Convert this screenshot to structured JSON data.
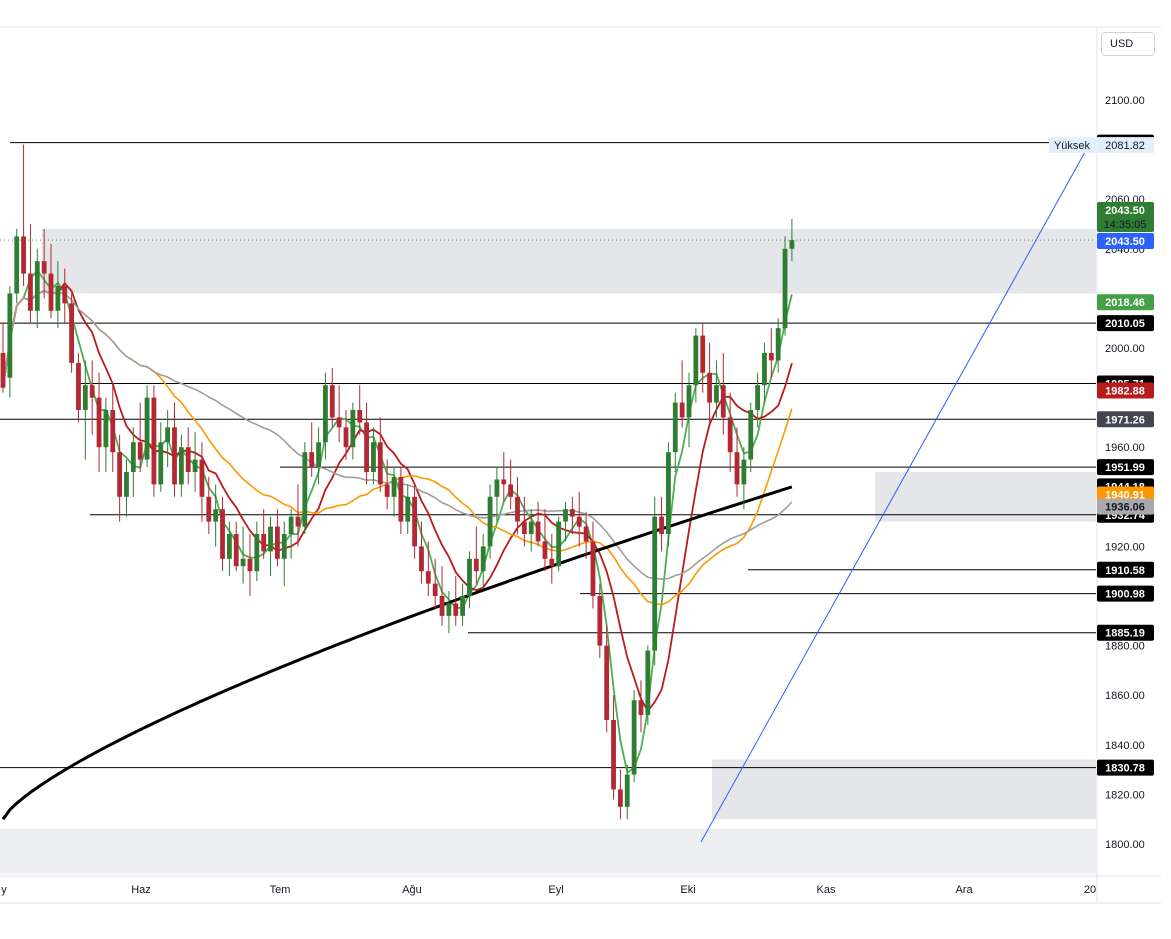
{
  "currency_label": "USD",
  "y_tick_labels": [
    "2100.00",
    "2060.00",
    "2040.00",
    "2000.00",
    "1960.00",
    "1920.00",
    "1880.00",
    "1860.00",
    "1840.00",
    "1820.00",
    "1800.00"
  ],
  "x_tick_labels": [
    "y",
    "Haz",
    "Tem",
    "Ağu",
    "Eyl",
    "Eki",
    "Kas",
    "Ara",
    "20"
  ],
  "level_tags": [
    {
      "text": "2082.82",
      "bg": "#000000",
      "fg": "#ffffff"
    },
    {
      "text": "2010.05",
      "bg": "#000000",
      "fg": "#ffffff"
    },
    {
      "text": "1985.71",
      "bg": "#000000",
      "fg": "#ffffff"
    },
    {
      "text": "1971.26",
      "bg": "#434651",
      "fg": "#ffffff"
    },
    {
      "text": "1951.99",
      "bg": "#000000",
      "fg": "#ffffff"
    },
    {
      "text": "1932.74",
      "bg": "#000000",
      "fg": "#ffffff"
    },
    {
      "text": "1910.58",
      "bg": "#000000",
      "fg": "#ffffff"
    },
    {
      "text": "1900.98",
      "bg": "#000000",
      "fg": "#ffffff"
    },
    {
      "text": "1885.19",
      "bg": "#000000",
      "fg": "#ffffff"
    },
    {
      "text": "1830.78",
      "bg": "#000000",
      "fg": "#ffffff"
    }
  ],
  "ma_tags": [
    {
      "text": "2018.46",
      "bg": "#43a047",
      "fg": "#ffffff"
    },
    {
      "text": "1982.88",
      "bg": "#b71c1c",
      "fg": "#ffffff"
    },
    {
      "text": "1944.18",
      "bg": "#000000",
      "fg": "#ffffff"
    },
    {
      "text": "1940.91",
      "bg": "#ff9800",
      "fg": "#ffffff"
    },
    {
      "text": "1936.06",
      "bg": "#a8a8ad",
      "fg": "#131722"
    }
  ],
  "price_tag": {
    "price": "2043.50",
    "time": "14:35:05",
    "bg": "#2e7d32",
    "fg": "#ffffff"
  },
  "price_line_tag": {
    "text": "2043.50",
    "bg": "#2962ff",
    "fg": "#ffffff"
  },
  "high_label": {
    "label": "Yüksek",
    "value": "2081.82"
  },
  "colors": {
    "up": "#2e7d32",
    "down": "#b22833",
    "ma_green": "#4caf50",
    "ma_red": "#b71c1c",
    "ma_orange": "#ff9800",
    "ma_gray": "#9e9e9e",
    "ma_black": "#000000",
    "trendline": "#2962ff",
    "zone": "#d1d4dc"
  },
  "chart_data": {
    "type": "candlestick",
    "xlabel": "",
    "ylabel": "",
    "currency": "USD",
    "ylim": [
      1787,
      2122
    ],
    "x_ticks": [
      "Haz",
      "Tem",
      "Ağu",
      "Eyl",
      "Eki",
      "Kas",
      "Ara",
      "20"
    ],
    "candles_ohlc": [
      [
        1998,
        2010,
        1982,
        1984
      ],
      [
        1988,
        2025,
        1980,
        2022
      ],
      [
        2022,
        2048,
        2018,
        2045
      ],
      [
        2045,
        2082,
        2025,
        2030
      ],
      [
        2030,
        2050,
        2010,
        2015
      ],
      [
        2015,
        2040,
        2008,
        2035
      ],
      [
        2035,
        2048,
        2020,
        2030
      ],
      [
        2030,
        2042,
        2012,
        2015
      ],
      [
        2015,
        2035,
        2008,
        2025
      ],
      [
        2025,
        2032,
        2010,
        2018
      ],
      [
        2018,
        2022,
        1990,
        1994
      ],
      [
        1994,
        1998,
        1970,
        1975
      ],
      [
        1975,
        1995,
        1955,
        1985
      ],
      [
        1985,
        1995,
        1965,
        1980
      ],
      [
        1980,
        1990,
        1950,
        1960
      ],
      [
        1960,
        1980,
        1950,
        1975
      ],
      [
        1975,
        1985,
        1950,
        1958
      ],
      [
        1958,
        1965,
        1930,
        1940
      ],
      [
        1940,
        1955,
        1932,
        1950
      ],
      [
        1950,
        1968,
        1940,
        1962
      ],
      [
        1962,
        1978,
        1950,
        1955
      ],
      [
        1955,
        1985,
        1952,
        1980
      ],
      [
        1980,
        1985,
        1940,
        1945
      ],
      [
        1945,
        1970,
        1942,
        1962
      ],
      [
        1962,
        1975,
        1952,
        1968
      ],
      [
        1968,
        1978,
        1940,
        1945
      ],
      [
        1945,
        1965,
        1940,
        1960
      ],
      [
        1960,
        1968,
        1945,
        1950
      ],
      [
        1950,
        1966,
        1942,
        1955
      ],
      [
        1955,
        1962,
        1930,
        1940
      ],
      [
        1940,
        1948,
        1925,
        1930
      ],
      [
        1930,
        1945,
        1920,
        1935
      ],
      [
        1935,
        1940,
        1910,
        1915
      ],
      [
        1915,
        1930,
        1908,
        1925
      ],
      [
        1925,
        1930,
        1910,
        1912
      ],
      [
        1912,
        1928,
        1905,
        1915
      ],
      [
        1915,
        1925,
        1900,
        1910
      ],
      [
        1910,
        1930,
        1906,
        1925
      ],
      [
        1925,
        1935,
        1915,
        1918
      ],
      [
        1918,
        1932,
        1908,
        1928
      ],
      [
        1928,
        1935,
        1912,
        1915
      ],
      [
        1915,
        1930,
        1904,
        1925
      ],
      [
        1925,
        1935,
        1915,
        1932
      ],
      [
        1932,
        1945,
        1920,
        1928
      ],
      [
        1928,
        1962,
        1925,
        1958
      ],
      [
        1958,
        1970,
        1948,
        1952
      ],
      [
        1952,
        1968,
        1945,
        1962
      ],
      [
        1962,
        1990,
        1955,
        1985
      ],
      [
        1985,
        1992,
        1968,
        1972
      ],
      [
        1972,
        1985,
        1962,
        1968
      ],
      [
        1968,
        1975,
        1955,
        1960
      ],
      [
        1960,
        1978,
        1955,
        1975
      ],
      [
        1975,
        1985,
        1965,
        1970
      ],
      [
        1970,
        1978,
        1945,
        1950
      ],
      [
        1950,
        1968,
        1945,
        1962
      ],
      [
        1962,
        1972,
        1942,
        1945
      ],
      [
        1945,
        1955,
        1935,
        1940
      ],
      [
        1940,
        1952,
        1932,
        1948
      ],
      [
        1948,
        1952,
        1925,
        1930
      ],
      [
        1930,
        1945,
        1925,
        1940
      ],
      [
        1940,
        1945,
        1915,
        1920
      ],
      [
        1920,
        1930,
        1905,
        1910
      ],
      [
        1910,
        1922,
        1900,
        1905
      ],
      [
        1905,
        1915,
        1895,
        1900
      ],
      [
        1900,
        1912,
        1888,
        1892
      ],
      [
        1892,
        1902,
        1885,
        1897
      ],
      [
        1897,
        1908,
        1888,
        1892
      ],
      [
        1892,
        1905,
        1888,
        1900
      ],
      [
        1900,
        1918,
        1895,
        1915
      ],
      [
        1915,
        1928,
        1905,
        1910
      ],
      [
        1910,
        1925,
        1904,
        1920
      ],
      [
        1920,
        1945,
        1915,
        1940
      ],
      [
        1940,
        1952,
        1930,
        1947
      ],
      [
        1947,
        1958,
        1938,
        1945
      ],
      [
        1945,
        1955,
        1935,
        1940
      ],
      [
        1940,
        1948,
        1925,
        1930
      ],
      [
        1930,
        1940,
        1920,
        1925
      ],
      [
        1925,
        1935,
        1918,
        1930
      ],
      [
        1930,
        1938,
        1920,
        1922
      ],
      [
        1922,
        1935,
        1910,
        1915
      ],
      [
        1915,
        1925,
        1905,
        1912
      ],
      [
        1912,
        1932,
        1910,
        1930
      ],
      [
        1930,
        1938,
        1922,
        1935
      ],
      [
        1935,
        1940,
        1925,
        1932
      ],
      [
        1932,
        1942,
        1920,
        1928
      ],
      [
        1928,
        1934,
        1915,
        1922
      ],
      [
        1922,
        1930,
        1895,
        1900
      ],
      [
        1900,
        1905,
        1875,
        1880
      ],
      [
        1880,
        1888,
        1845,
        1850
      ],
      [
        1850,
        1860,
        1818,
        1822
      ],
      [
        1822,
        1830,
        1810,
        1815
      ],
      [
        1815,
        1832,
        1810,
        1828
      ],
      [
        1828,
        1862,
        1825,
        1858
      ],
      [
        1858,
        1866,
        1845,
        1852
      ],
      [
        1852,
        1880,
        1848,
        1878
      ],
      [
        1878,
        1940,
        1872,
        1932
      ],
      [
        1932,
        1940,
        1918,
        1925
      ],
      [
        1925,
        1962,
        1920,
        1958
      ],
      [
        1958,
        1982,
        1950,
        1978
      ],
      [
        1978,
        1995,
        1968,
        1972
      ],
      [
        1972,
        1990,
        1960,
        1985
      ],
      [
        1985,
        2008,
        1978,
        2005
      ],
      [
        2005,
        2010,
        1982,
        1990
      ],
      [
        1990,
        2002,
        1970,
        1978
      ],
      [
        1978,
        1995,
        1972,
        1985
      ],
      [
        1985,
        1998,
        1965,
        1972
      ],
      [
        1972,
        1982,
        1950,
        1958
      ],
      [
        1958,
        1968,
        1940,
        1945
      ],
      [
        1945,
        1960,
        1935,
        1955
      ],
      [
        1955,
        1978,
        1950,
        1975
      ],
      [
        1975,
        1990,
        1968,
        1985
      ],
      [
        1985,
        2002,
        1978,
        1998
      ],
      [
        1998,
        2008,
        1988,
        1995
      ],
      [
        1995,
        2012,
        1990,
        2008
      ],
      [
        2008,
        2045,
        2005,
        2040
      ],
      [
        2040,
        2052,
        2035,
        2043.5
      ]
    ],
    "moving_averages": [
      {
        "color": "#4caf50",
        "last": 2018.46
      },
      {
        "color": "#b71c1c",
        "last": 1982.88
      },
      {
        "color": "#000000",
        "last": 1944.18
      },
      {
        "color": "#ff9800",
        "last": 1940.91
      },
      {
        "color": "#9e9e9e",
        "last": 1936.06
      }
    ],
    "horizontal_levels": [
      2082.82,
      2010.05,
      1985.71,
      1971.26,
      1951.99,
      1932.74,
      1910.58,
      1900.98,
      1885.19,
      1830.78
    ],
    "zones": [
      [
        2022,
        2048
      ],
      [
        1930,
        1950
      ],
      [
        1810,
        1834
      ],
      [
        1788,
        1806
      ]
    ],
    "current_price": 2043.5,
    "countdown": "14:35:05",
    "high": {
      "label": "Yüksek",
      "value": 2081.82
    },
    "grid": false
  }
}
